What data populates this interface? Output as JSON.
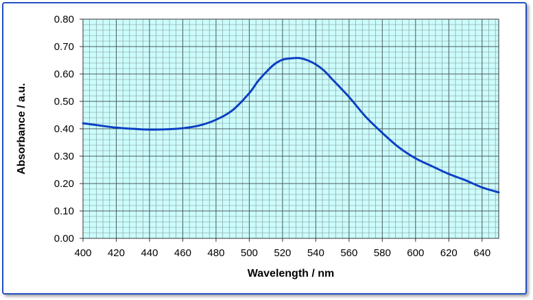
{
  "chart_data": {
    "type": "line",
    "title": "",
    "xlabel": "Wavelength / nm",
    "ylabel": "Absorbance / a.u.",
    "xlim": [
      400,
      650
    ],
    "ylim": [
      0,
      0.8
    ],
    "x_ticks": [
      "400",
      "420",
      "440",
      "460",
      "480",
      "500",
      "520",
      "540",
      "560",
      "580",
      "600",
      "620",
      "640"
    ],
    "y_ticks": [
      "0.00",
      "0.10",
      "0.20",
      "0.30",
      "0.40",
      "0.50",
      "0.60",
      "0.70",
      "0.80"
    ],
    "grid": true,
    "legend": "none",
    "colors": {
      "line": "#0a3fc4",
      "plot_bg": "#ccfcfc",
      "grid": "#7f8f8f",
      "frame": "#1f4fbf"
    },
    "series": [
      {
        "x": [
          400,
          410,
          420,
          430,
          440,
          450,
          460,
          470,
          480,
          490,
          500,
          505,
          510,
          515,
          520,
          525,
          530,
          535,
          540,
          545,
          550,
          560,
          570,
          580,
          590,
          600,
          610,
          620,
          630,
          640,
          650
        ],
        "y": [
          0.42,
          0.412,
          0.404,
          0.4,
          0.397,
          0.398,
          0.402,
          0.412,
          0.433,
          0.468,
          0.53,
          0.572,
          0.606,
          0.635,
          0.652,
          0.657,
          0.658,
          0.65,
          0.635,
          0.612,
          0.58,
          0.516,
          0.444,
          0.385,
          0.332,
          0.292,
          0.263,
          0.235,
          0.212,
          0.186,
          0.168
        ]
      }
    ]
  }
}
